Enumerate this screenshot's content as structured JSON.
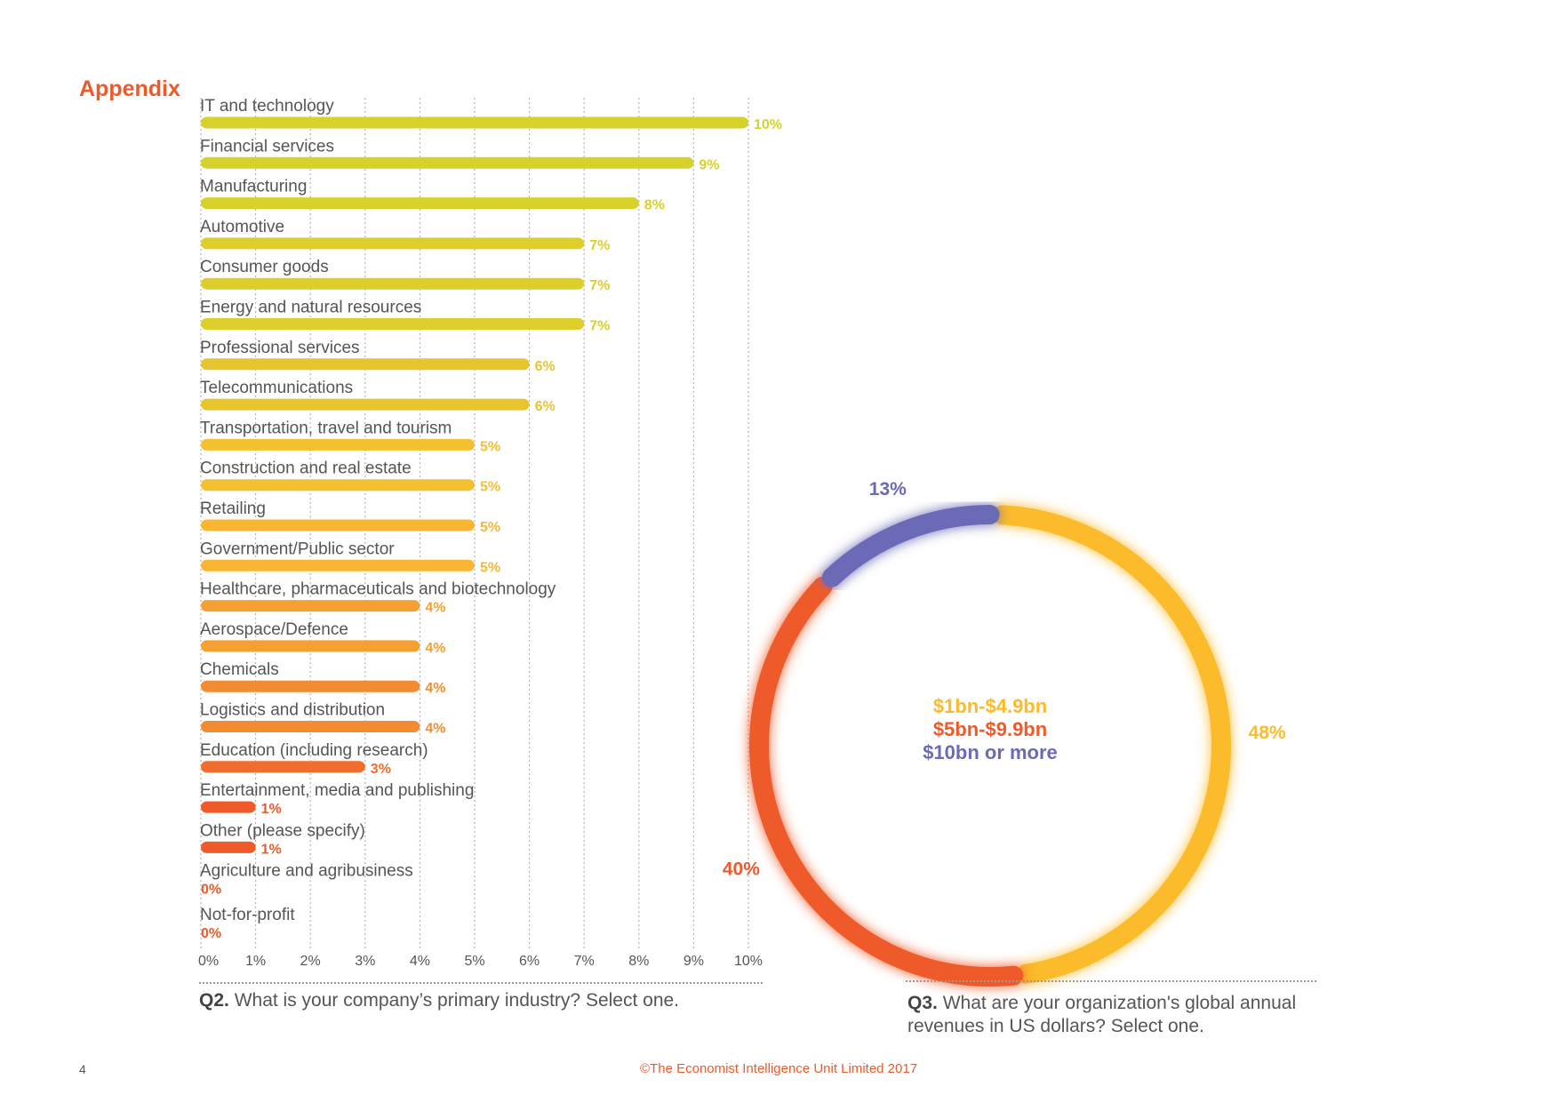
{
  "page": {
    "section_title": "Appendix",
    "page_number": "4",
    "copyright": "©The Economist Intelligence Unit Limited 2017"
  },
  "q2": {
    "number": "Q2.",
    "text": " What is your company’s primary industry? Select one."
  },
  "q3": {
    "number": "Q3.",
    "text_line1": " What are your organization's global annual",
    "text_line2": "revenues in US dollars? Select one."
  },
  "chart_data": [
    {
      "type": "bar",
      "orientation": "horizontal",
      "categories": [
        "IT and technology",
        "Financial services",
        "Manufacturing",
        "Automotive",
        "Consumer goods",
        "Energy and natural resources",
        "Professional services",
        "Telecommunications",
        "Transportation, travel and tourism",
        "Construction and real estate",
        "Retailing",
        "Government/Public sector",
        "Healthcare, pharmaceuticals and biotechnology",
        "Aerospace/Defence",
        "Chemicals",
        "Logistics and distribution",
        "Education (including research)",
        "Entertainment, media and publishing",
        "Other (please specify)",
        "Agriculture and agribusiness",
        "Not-for-profit"
      ],
      "values": [
        10,
        9,
        8,
        7,
        7,
        7,
        6,
        6,
        5,
        5,
        5,
        5,
        4,
        4,
        4,
        4,
        3,
        1,
        1,
        0,
        0
      ],
      "bar_lengths": [
        10,
        9,
        8,
        7,
        7,
        7,
        6,
        6,
        5,
        5,
        5,
        5,
        4,
        4,
        4,
        4,
        3,
        1,
        1,
        0,
        0
      ],
      "value_labels": [
        "10%",
        "9%",
        "8%",
        "7%",
        "7%",
        "7%",
        "6%",
        "6%",
        "5%",
        "5%",
        "5%",
        "5%",
        "4%",
        "4%",
        "4%",
        "4%",
        "3%",
        "1%",
        "1%",
        "0%",
        "0%"
      ],
      "colors": [
        "#d6d22b",
        "#d6d22b",
        "#d6d22b",
        "#dccf2c",
        "#dccf2c",
        "#dccf2c",
        "#e6c52e",
        "#e6c52e",
        "#f4c030",
        "#f4c030",
        "#f8b632",
        "#f8b632",
        "#f5a032",
        "#f5a032",
        "#f28c32",
        "#f28c32",
        "#ef6e2e",
        "#ee5a2a",
        "#ee5a2a",
        "#ee5a2a",
        "#ee5a2a"
      ],
      "xticks": [
        "0%",
        "1%",
        "2%",
        "3%",
        "4%",
        "5%",
        "6%",
        "7%",
        "8%",
        "9%",
        "10%"
      ],
      "xlim": [
        0,
        10
      ],
      "grid": true,
      "title": "",
      "xlabel": "",
      "ylabel": ""
    },
    {
      "type": "pie",
      "variant": "donut",
      "categories": [
        "$1bn-$4.9bn",
        "$5bn-$9.9bn",
        "$10bn or more"
      ],
      "values": [
        48,
        40,
        13
      ],
      "value_labels": [
        "48%",
        "40%",
        "13%"
      ],
      "colors": [
        "#fbbb2a",
        "#ef5a2a",
        "#6b6ab6"
      ],
      "legend_position": "center"
    }
  ]
}
